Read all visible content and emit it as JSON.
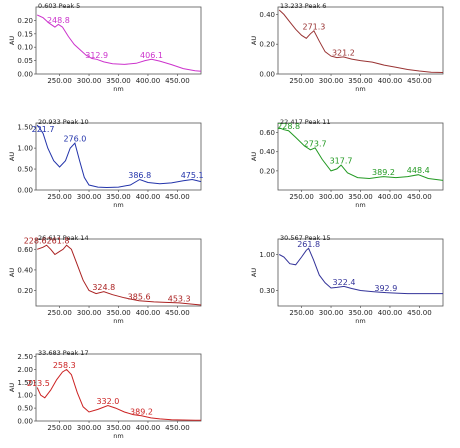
{
  "chart_data": [
    {
      "type": "line",
      "title": "0.603 Peak 5",
      "xlabel": "nm",
      "ylabel": "AU",
      "color": "#cc33cc",
      "xlim": [
        210,
        490
      ],
      "ylim": [
        0.0,
        0.25
      ],
      "xticks": [
        "250.00",
        "300.00",
        "350.00",
        "400.00",
        "450.00"
      ],
      "yticks": [
        "0.00",
        "0.05",
        "0.10",
        "0.15",
        "0.20"
      ],
      "x": [
        212,
        222,
        232,
        242,
        248,
        255,
        265,
        275,
        285,
        295,
        305,
        313,
        325,
        340,
        360,
        380,
        395,
        406,
        420,
        440,
        460,
        480,
        490
      ],
      "y": [
        0.22,
        0.21,
        0.19,
        0.175,
        0.185,
        0.175,
        0.14,
        0.11,
        0.09,
        0.07,
        0.058,
        0.055,
        0.045,
        0.038,
        0.036,
        0.04,
        0.05,
        0.055,
        0.048,
        0.035,
        0.02,
        0.012,
        0.01
      ],
      "annotations": [
        {
          "text": "248.8",
          "x": 248,
          "y": 0.185
        },
        {
          "text": "312.9",
          "x": 313,
          "y": 0.055
        },
        {
          "text": "406.1",
          "x": 406,
          "y": 0.055
        }
      ]
    },
    {
      "type": "line",
      "title": "13.233 Peak 6",
      "xlabel": "nm",
      "ylabel": "AU",
      "color": "#993333",
      "xlim": [
        210,
        490
      ],
      "ylim": [
        0.0,
        0.45
      ],
      "xticks": [
        "250.00",
        "300.00",
        "350.00",
        "400.00",
        "450.00"
      ],
      "yticks": [
        "0.00",
        "0.20",
        "0.40"
      ],
      "x": [
        212,
        220,
        230,
        240,
        250,
        258,
        265,
        271,
        280,
        290,
        300,
        310,
        321,
        335,
        350,
        370,
        390,
        410,
        430,
        450,
        470,
        490
      ],
      "y": [
        0.43,
        0.4,
        0.35,
        0.3,
        0.26,
        0.24,
        0.27,
        0.29,
        0.22,
        0.15,
        0.12,
        0.11,
        0.115,
        0.1,
        0.09,
        0.08,
        0.06,
        0.045,
        0.03,
        0.02,
        0.012,
        0.01
      ],
      "annotations": [
        {
          "text": "271.3",
          "x": 271,
          "y": 0.29
        },
        {
          "text": "321.2",
          "x": 321,
          "y": 0.115
        }
      ]
    },
    {
      "type": "line",
      "title": "20.933 Peak 10",
      "xlabel": "nm",
      "ylabel": "AU",
      "color": "#2233aa",
      "xlim": [
        210,
        490
      ],
      "ylim": [
        0.0,
        1.6
      ],
      "xticks": [
        "250.00",
        "300.00",
        "350.00",
        "400.00",
        "450.00"
      ],
      "yticks": [
        "0.00",
        "0.50",
        "1.00",
        "1.50"
      ],
      "x": [
        212,
        216,
        222,
        230,
        240,
        250,
        260,
        268,
        276,
        284,
        292,
        300,
        315,
        330,
        350,
        370,
        386,
        400,
        420,
        440,
        460,
        475,
        490
      ],
      "y": [
        1.55,
        1.48,
        1.35,
        1.0,
        0.7,
        0.55,
        0.7,
        1.0,
        1.12,
        0.7,
        0.3,
        0.12,
        0.07,
        0.06,
        0.07,
        0.12,
        0.25,
        0.18,
        0.15,
        0.17,
        0.22,
        0.25,
        0.2
      ],
      "annotations": [
        {
          "text": "221.7",
          "x": 222,
          "y": 1.35
        },
        {
          "text": "276.0",
          "x": 276,
          "y": 1.12
        },
        {
          "text": "386.8",
          "x": 386,
          "y": 0.25
        },
        {
          "text": "475.1",
          "x": 475,
          "y": 0.25
        }
      ]
    },
    {
      "type": "line",
      "title": "22.417 Peak 11",
      "xlabel": "nm",
      "ylabel": "AU",
      "color": "#229922",
      "xlim": [
        210,
        490
      ],
      "ylim": [
        0.0,
        0.7
      ],
      "xticks": [
        "250.00",
        "300.00",
        "350.00",
        "400.00",
        "450.00"
      ],
      "yticks": [
        "0.20",
        "0.40",
        "0.60"
      ],
      "x": [
        212,
        220,
        228,
        240,
        255,
        265,
        273,
        285,
        300,
        310,
        317,
        328,
        345,
        365,
        389,
        410,
        430,
        448,
        465,
        490
      ],
      "y": [
        0.65,
        0.63,
        0.62,
        0.55,
        0.46,
        0.42,
        0.44,
        0.32,
        0.2,
        0.22,
        0.26,
        0.18,
        0.13,
        0.12,
        0.14,
        0.13,
        0.14,
        0.16,
        0.12,
        0.1
      ],
      "annotations": [
        {
          "text": "228.8",
          "x": 228,
          "y": 0.62
        },
        {
          "text": "273.7",
          "x": 273,
          "y": 0.44
        },
        {
          "text": "317.7",
          "x": 317,
          "y": 0.26
        },
        {
          "text": "389.2",
          "x": 389,
          "y": 0.14
        },
        {
          "text": "448.4",
          "x": 448,
          "y": 0.16
        }
      ]
    },
    {
      "type": "line",
      "title": "26.617 Peak 14",
      "xlabel": "nm",
      "ylabel": "AU",
      "color": "#aa2222",
      "xlim": [
        210,
        490
      ],
      "ylim": [
        0.05,
        0.7
      ],
      "xticks": [
        "250.00",
        "300.00",
        "350.00",
        "400.00",
        "450.00"
      ],
      "yticks": [
        "0.20",
        "0.40",
        "0.60"
      ],
      "x": [
        212,
        222,
        228,
        235,
        242,
        250,
        256,
        262,
        270,
        280,
        290,
        300,
        312,
        325,
        340,
        360,
        385,
        410,
        430,
        453,
        470,
        490
      ],
      "y": [
        0.6,
        0.62,
        0.64,
        0.6,
        0.55,
        0.58,
        0.6,
        0.64,
        0.6,
        0.45,
        0.3,
        0.2,
        0.17,
        0.19,
        0.16,
        0.13,
        0.1,
        0.09,
        0.085,
        0.08,
        0.07,
        0.06
      ],
      "annotations": [
        {
          "text": "228.6261.8",
          "x": 228,
          "y": 0.64
        },
        {
          "text": "324.8",
          "x": 325,
          "y": 0.19
        },
        {
          "text": "385.6",
          "x": 385,
          "y": 0.1
        },
        {
          "text": "453.3",
          "x": 453,
          "y": 0.08
        }
      ]
    },
    {
      "type": "line",
      "title": "30.567 Peak 15",
      "xlabel": "nm",
      "ylabel": "AU",
      "color": "#333399",
      "xlim": [
        210,
        490
      ],
      "ylim": [
        0.0,
        1.3
      ],
      "xticks": [
        "250.00",
        "300.00",
        "350.00",
        "400.00",
        "450.00"
      ],
      "yticks": [
        "0.30",
        "1.00"
      ],
      "x": [
        212,
        220,
        230,
        240,
        250,
        258,
        262,
        270,
        280,
        290,
        300,
        310,
        322,
        335,
        350,
        370,
        393,
        410,
        430,
        450,
        470,
        490
      ],
      "y": [
        1.0,
        0.95,
        0.82,
        0.8,
        0.95,
        1.08,
        1.12,
        0.9,
        0.6,
        0.45,
        0.35,
        0.36,
        0.38,
        0.34,
        0.3,
        0.28,
        0.26,
        0.25,
        0.24,
        0.24,
        0.24,
        0.24
      ],
      "annotations": [
        {
          "text": "261.8",
          "x": 262,
          "y": 1.12
        },
        {
          "text": "322.4",
          "x": 322,
          "y": 0.38
        },
        {
          "text": "392.9",
          "x": 393,
          "y": 0.26
        }
      ]
    },
    {
      "type": "line",
      "title": "33.683 Peak 17",
      "xlabel": "nm",
      "ylabel": "AU",
      "color": "#cc2222",
      "xlim": [
        210,
        490
      ],
      "ylim": [
        0.0,
        2.6
      ],
      "xticks": [
        "250.00",
        "300.00",
        "350.00",
        "400.00",
        "450.00"
      ],
      "yticks": [
        "0.00",
        "0.50",
        "1.00",
        "1.50",
        "2.00",
        "2.50"
      ],
      "x": [
        212,
        218,
        225,
        235,
        245,
        255,
        262,
        270,
        280,
        290,
        300,
        315,
        332,
        345,
        360,
        375,
        389,
        405,
        420,
        440,
        460,
        480,
        490
      ],
      "y": [
        1.3,
        1.0,
        0.9,
        1.2,
        1.6,
        1.9,
        2.0,
        1.8,
        1.1,
        0.55,
        0.35,
        0.45,
        0.6,
        0.5,
        0.35,
        0.25,
        0.2,
        0.12,
        0.08,
        0.05,
        0.04,
        0.03,
        0.03
      ],
      "annotations": [
        {
          "text": "213.5",
          "x": 214,
          "y": 1.3
        },
        {
          "text": "258.3",
          "x": 258,
          "y": 2.0
        },
        {
          "text": "332.0",
          "x": 332,
          "y": 0.6
        },
        {
          "text": "389.2",
          "x": 389,
          "y": 0.2
        }
      ]
    }
  ]
}
